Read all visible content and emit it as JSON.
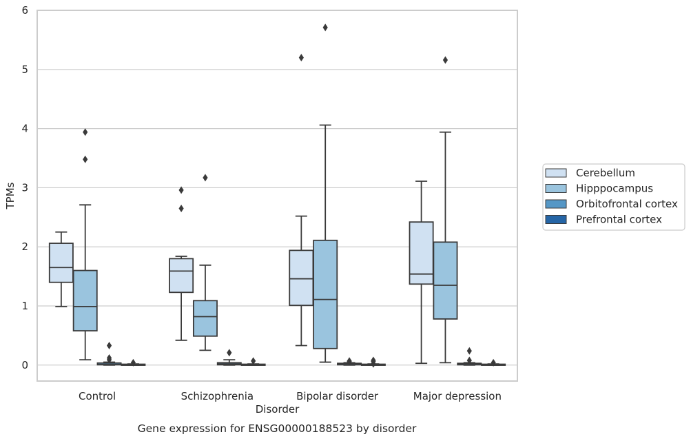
{
  "caption": "Gene expression for ENSG00000188523 by disorder",
  "chart_data": {
    "type": "box",
    "xlabel": "Disorder",
    "ylabel": "TPMs",
    "ylim": [
      -0.27,
      6.0
    ],
    "yticks": [
      0,
      1,
      2,
      3,
      4,
      5,
      6
    ],
    "grid": "horizontal",
    "legend_position": "right",
    "categories": [
      "Control",
      "Schizophrenia",
      "Bipolar disorder",
      "Major depression"
    ],
    "series": [
      {
        "name": "Cerebellum",
        "color": "#d0e1f2",
        "boxes": [
          {
            "whislo": 0.99,
            "q1": 1.4,
            "med": 1.65,
            "q3": 2.06,
            "whishi": 2.25,
            "fliers": []
          },
          {
            "whislo": 0.42,
            "q1": 1.23,
            "med": 1.59,
            "q3": 1.8,
            "whishi": 1.84,
            "fliers": [
              2.65,
              2.96
            ]
          },
          {
            "whislo": 0.33,
            "q1": 1.01,
            "med": 1.46,
            "q3": 1.94,
            "whishi": 2.52,
            "fliers": [
              5.2
            ]
          },
          {
            "whislo": 0.03,
            "q1": 1.37,
            "med": 1.54,
            "q3": 2.42,
            "whishi": 3.11,
            "fliers": []
          }
        ]
      },
      {
        "name": "Hipppocampus",
        "color": "#9ac4de",
        "boxes": [
          {
            "whislo": 0.09,
            "q1": 0.58,
            "med": 0.99,
            "q3": 1.6,
            "whishi": 2.71,
            "fliers": [
              3.48,
              3.94
            ]
          },
          {
            "whislo": 0.25,
            "q1": 0.49,
            "med": 0.82,
            "q3": 1.09,
            "whishi": 1.69,
            "fliers": [
              3.17
            ]
          },
          {
            "whislo": 0.05,
            "q1": 0.28,
            "med": 1.11,
            "q3": 2.11,
            "whishi": 4.06,
            "fliers": [
              5.71
            ]
          },
          {
            "whislo": 0.04,
            "q1": 0.78,
            "med": 1.35,
            "q3": 2.08,
            "whishi": 3.94,
            "fliers": [
              5.16
            ]
          }
        ]
      },
      {
        "name": "Orbitofrontal cortex",
        "color": "#5597c6",
        "boxes": [
          {
            "whislo": 0.0,
            "q1": 0.005,
            "med": 0.01,
            "q3": 0.035,
            "whishi": 0.05,
            "fliers": [
              0.09,
              0.12,
              0.33
            ]
          },
          {
            "whislo": 0.0,
            "q1": 0.005,
            "med": 0.02,
            "q3": 0.04,
            "whishi": 0.09,
            "fliers": [
              0.21
            ]
          },
          {
            "whislo": 0.0,
            "q1": 0.005,
            "med": 0.01,
            "q3": 0.03,
            "whishi": 0.04,
            "fliers": [
              0.06,
              0.07
            ]
          },
          {
            "whislo": 0.0,
            "q1": 0.005,
            "med": 0.01,
            "q3": 0.03,
            "whishi": 0.04,
            "fliers": [
              0.08,
              0.24
            ]
          }
        ]
      },
      {
        "name": "Prefrontal cortex",
        "color": "#2565a6",
        "boxes": [
          {
            "whislo": 0.0,
            "q1": 0.003,
            "med": 0.005,
            "q3": 0.015,
            "whishi": 0.02,
            "fliers": [
              0.04
            ]
          },
          {
            "whislo": 0.0,
            "q1": 0.003,
            "med": 0.005,
            "q3": 0.015,
            "whishi": 0.02,
            "fliers": [
              0.07
            ]
          },
          {
            "whislo": 0.0,
            "q1": 0.003,
            "med": 0.005,
            "q3": 0.015,
            "whishi": 0.02,
            "fliers": [
              0.02,
              0.06,
              0.08
            ]
          },
          {
            "whislo": 0.0,
            "q1": 0.003,
            "med": 0.005,
            "q3": 0.015,
            "whishi": 0.02,
            "fliers": [
              0.04
            ]
          }
        ]
      }
    ]
  }
}
